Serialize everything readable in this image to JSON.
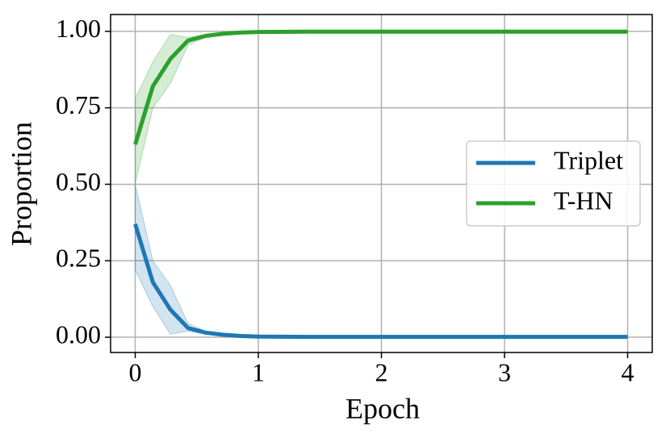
{
  "chart_data": {
    "type": "line",
    "xlabel": "Epoch",
    "ylabel": "Proportion",
    "x": [
      0,
      0.143,
      0.286,
      0.429,
      0.571,
      0.714,
      0.857,
      1.0,
      1.5,
      2.0,
      2.5,
      3.0,
      3.5,
      4.0
    ],
    "series": [
      {
        "name": "Triplet",
        "color": "#1f77b4",
        "values": [
          0.37,
          0.18,
          0.09,
          0.03,
          0.015,
          0.008,
          0.004,
          0.002,
          0.001,
          0.001,
          0.001,
          0.001,
          0.001,
          0.001
        ],
        "upper": [
          0.5,
          0.25,
          0.17,
          0.045,
          0.02,
          0.01,
          0.006,
          0.003,
          0.002,
          0.002,
          0.002,
          0.002,
          0.002,
          0.002
        ],
        "lower": [
          0.22,
          0.1,
          0.01,
          0.02,
          0.01,
          0.005,
          0.002,
          0.001,
          0.0,
          0.0,
          0.0,
          0.0,
          0.0,
          0.0
        ]
      },
      {
        "name": "T-HN",
        "color": "#2ca02c",
        "values": [
          0.63,
          0.82,
          0.91,
          0.97,
          0.985,
          0.992,
          0.996,
          0.998,
          0.999,
          0.999,
          0.999,
          0.999,
          0.999,
          0.999
        ],
        "upper": [
          0.78,
          0.9,
          0.99,
          0.98,
          0.99,
          0.995,
          0.998,
          0.999,
          1.0,
          1.0,
          1.0,
          1.0,
          1.0,
          1.0
        ],
        "lower": [
          0.5,
          0.75,
          0.83,
          0.955,
          0.98,
          0.99,
          0.994,
          0.997,
          0.998,
          0.998,
          0.998,
          0.998,
          0.998,
          0.998
        ]
      }
    ],
    "xlim": [
      -0.2,
      4.2
    ],
    "xticks": [
      0,
      1,
      2,
      3,
      4
    ],
    "ylim": [
      -0.05,
      1.055
    ],
    "yticks": [
      {
        "value": 0,
        "label": "0.00"
      },
      {
        "value": 0.25,
        "label": "0.25"
      },
      {
        "value": 0.5,
        "label": "0.50"
      },
      {
        "value": 0.75,
        "label": "0.75"
      },
      {
        "value": 1,
        "label": "1.00"
      }
    ],
    "grid": true,
    "legend": "center right"
  }
}
